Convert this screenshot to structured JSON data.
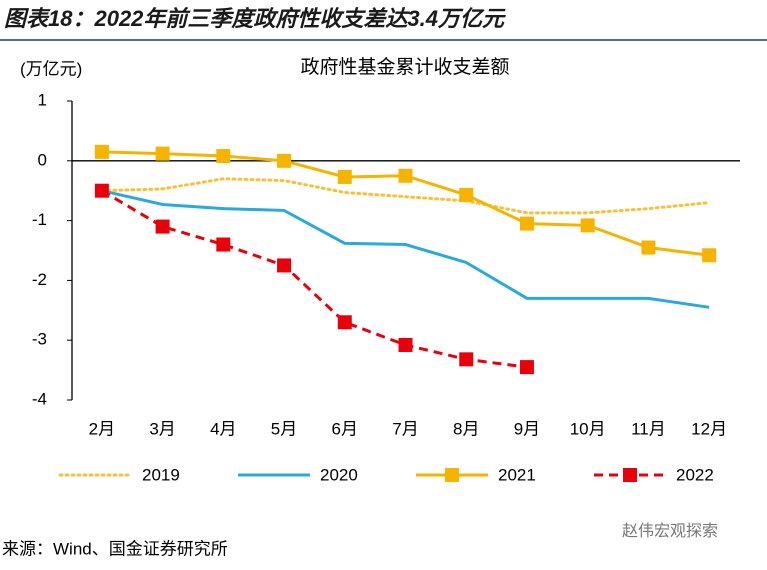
{
  "header": "图表18：2022年前三季度政府性收支差达3.4万亿元",
  "source": "来源：Wind、国金证券研究所",
  "watermark": "赵伟宏观探索",
  "chart_data": {
    "type": "line",
    "title": "政府性基金累计收支差额",
    "y_label": "(万亿元)",
    "categories": [
      "2月",
      "3月",
      "4月",
      "5月",
      "6月",
      "7月",
      "8月",
      "9月",
      "10月",
      "11月",
      "12月"
    ],
    "ylim": [
      -4,
      1
    ],
    "yticks": [
      -4,
      -3,
      -2,
      -1,
      0,
      1
    ],
    "legend": "bottom",
    "series": [
      {
        "name": "2019",
        "color": "#f7c239",
        "style": "dotted",
        "values": [
          -0.5,
          -0.47,
          -0.3,
          -0.33,
          -0.53,
          -0.6,
          -0.67,
          -0.87,
          -0.87,
          -0.8,
          -0.7
        ]
      },
      {
        "name": "2020",
        "color": "#2aa9df",
        "style": "solid",
        "values": [
          -0.5,
          -0.73,
          -0.8,
          -0.83,
          -1.38,
          -1.4,
          -1.7,
          -2.3,
          -2.3,
          -2.3,
          -2.45
        ]
      },
      {
        "name": "2021",
        "color": "#f6b400",
        "style": "solid",
        "marker": "square",
        "values": [
          0.15,
          0.12,
          0.08,
          0.0,
          -0.27,
          -0.25,
          -0.57,
          -1.05,
          -1.08,
          -1.45,
          -1.58
        ]
      },
      {
        "name": "2022",
        "color": "#e8000b",
        "style": "dashed",
        "marker": "square",
        "values": [
          -0.5,
          -1.1,
          -1.4,
          -1.75,
          -2.7,
          -3.08,
          -3.32,
          -3.45,
          null,
          null,
          null
        ]
      }
    ]
  }
}
